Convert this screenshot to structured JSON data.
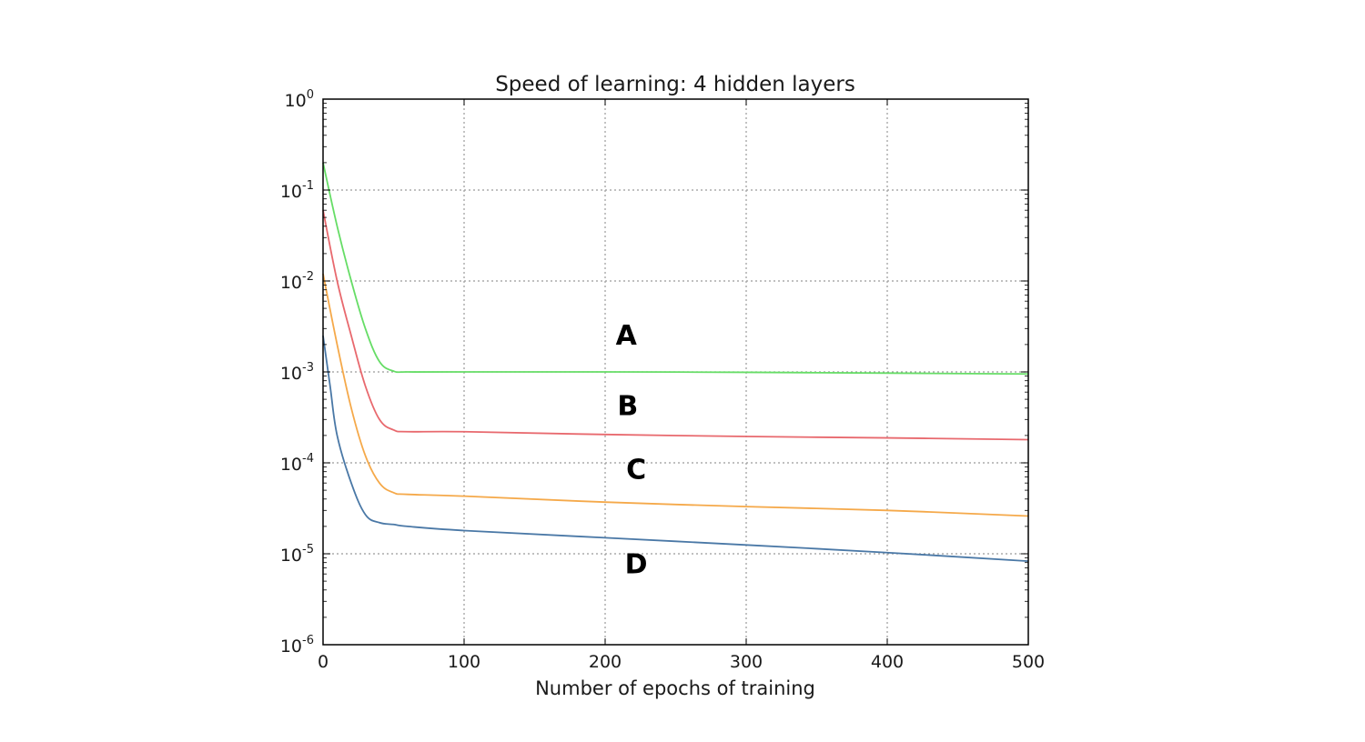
{
  "chart_data": {
    "type": "line",
    "title": "Speed of learning: 4 hidden layers",
    "xlabel": "Number of epochs of training",
    "ylabel": "",
    "xlim": [
      0,
      500
    ],
    "ylim": [
      1e-06,
      1
    ],
    "yscale": "log",
    "grid": true,
    "x_ticks": [
      0,
      100,
      200,
      300,
      400,
      500
    ],
    "y_ticks": [
      {
        "exp": 0,
        "base": "10",
        "sup": "0"
      },
      {
        "exp": -1,
        "base": "10",
        "sup": "-1"
      },
      {
        "exp": -2,
        "base": "10",
        "sup": "-2"
      },
      {
        "exp": -3,
        "base": "10",
        "sup": "-3"
      },
      {
        "exp": -4,
        "base": "10",
        "sup": "-4"
      },
      {
        "exp": -5,
        "base": "10",
        "sup": "-5"
      },
      {
        "exp": -6,
        "base": "10",
        "sup": "-6"
      }
    ],
    "series": [
      {
        "name": "A",
        "color": "#66dd66",
        "x": [
          0,
          10,
          20,
          30,
          40,
          50,
          60,
          100,
          200,
          300,
          400,
          500
        ],
        "y": [
          0.2,
          0.04,
          0.01,
          0.003,
          0.0013,
          0.00102,
          0.001,
          0.001,
          0.001,
          0.00099,
          0.00097,
          0.00095
        ]
      },
      {
        "name": "B",
        "color": "#e8696e",
        "x": [
          0,
          10,
          20,
          30,
          40,
          50,
          60,
          100,
          200,
          300,
          400,
          500
        ],
        "y": [
          0.06,
          0.01,
          0.0025,
          0.0007,
          0.0003,
          0.00023,
          0.00022,
          0.00022,
          0.000205,
          0.000195,
          0.000188,
          0.00018
        ]
      },
      {
        "name": "C",
        "color": "#f5a94a",
        "x": [
          0,
          10,
          20,
          30,
          40,
          50,
          60,
          100,
          200,
          300,
          400,
          500
        ],
        "y": [
          0.012,
          0.002,
          0.0004,
          0.00012,
          6e-05,
          4.7e-05,
          4.5e-05,
          4.3e-05,
          3.7e-05,
          3.3e-05,
          3e-05,
          2.6e-05
        ]
      },
      {
        "name": "D",
        "color": "#4a78a6",
        "x": [
          0,
          5,
          10,
          20,
          30,
          40,
          50,
          60,
          100,
          200,
          300,
          400,
          500
        ],
        "y": [
          0.0025,
          0.0007,
          0.0002,
          6e-05,
          2.7e-05,
          2.2e-05,
          2.1e-05,
          2e-05,
          1.8e-05,
          1.5e-05,
          1.25e-05,
          1.03e-05,
          8.3e-06
        ]
      }
    ],
    "annotations": [
      {
        "text": "A",
        "x": 215,
        "y": 0.0025
      },
      {
        "text": "B",
        "x": 216,
        "y": 0.00042
      },
      {
        "text": "C",
        "x": 222,
        "y": 8.4e-05
      },
      {
        "text": "D",
        "x": 222,
        "y": 7.7e-06
      }
    ]
  }
}
